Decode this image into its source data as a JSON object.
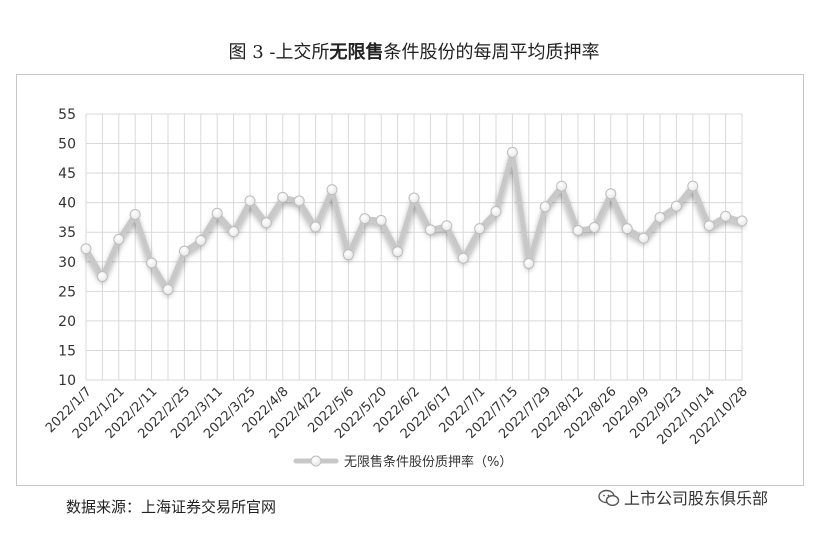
{
  "title": {
    "prefix": "图 3 -上交所",
    "bold": "无限售",
    "suffix": "条件股份的每周平均质押率"
  },
  "source": "数据来源：上海证券交易所官网",
  "watermark": "上市公司股东俱乐部",
  "chart_data": {
    "type": "line",
    "title": "图 3 -上交所无限售条件股份的每周平均质押率",
    "ylim": [
      10,
      55
    ],
    "yticks": [
      10,
      15,
      20,
      25,
      30,
      35,
      40,
      45,
      50,
      55
    ],
    "grid": true,
    "legend_position": "bottom",
    "xtick_labels": [
      "2022/1/7",
      "2022/1/21",
      "2022/2/11",
      "2022/2/25",
      "2022/3/11",
      "2022/3/25",
      "2022/4/8",
      "2022/4/22",
      "2022/5/6",
      "2022/5/20",
      "2022/6/2",
      "2022/6/17",
      "2022/7/1",
      "2022/7/15",
      "2022/7/29",
      "2022/8/12",
      "2022/8/26",
      "2022/9/9",
      "2022/9/23",
      "2022/10/14",
      "2022/10/28"
    ],
    "series": [
      {
        "name": "无限售条件股份质押率（%）",
        "color": "#c8c8c8",
        "values": [
          32.2,
          27.5,
          33.8,
          38.0,
          29.8,
          25.3,
          31.8,
          33.6,
          38.2,
          35.1,
          40.3,
          36.6,
          40.9,
          40.3,
          35.9,
          42.2,
          31.2,
          37.3,
          37.0,
          31.7,
          40.8,
          35.4,
          36.1,
          30.6,
          35.6,
          38.5,
          48.5,
          29.7,
          39.3,
          42.8,
          35.3,
          35.8,
          41.5,
          35.6,
          34.0,
          37.5,
          39.4,
          42.8,
          36.1,
          37.7,
          36.9
        ]
      }
    ]
  }
}
